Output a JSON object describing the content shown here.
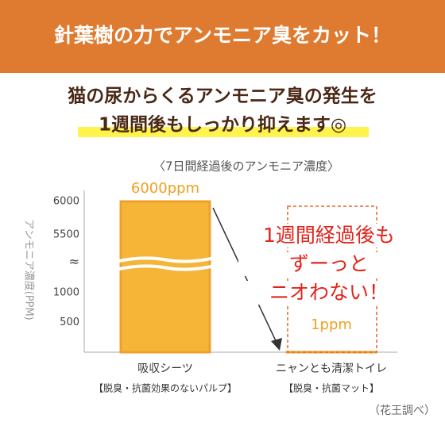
{
  "header": {
    "title": "針葉樹の力でアンモニア臭をカット！"
  },
  "subtitle": {
    "lines": [
      "猫の尿からくるアンモニア臭の発生を",
      "1週間後もしっかり抑えます◎"
    ]
  },
  "chart_data": {
    "type": "bar",
    "title": "〈7日間経過後のアンモニア濃度〉",
    "y_label": "アンモニア濃度(PPM)",
    "categories": [
      "吸収シーツ",
      "ニャンとも清潔トイレ"
    ],
    "category_notes": [
      "【脱臭・抗菌効果のないパルプ】",
      "【脱臭・抗菌マット】"
    ],
    "values": [
      6000,
      1
    ],
    "value_labels": [
      "6000ppm",
      "1ppm"
    ],
    "color": "#f6b536",
    "ylim": [
      0,
      6000
    ],
    "yticks": [
      500,
      1000,
      5500,
      6000
    ],
    "axis_break": "≈",
    "annotation_lines": [
      "1週間経過後も",
      "ずーっと",
      "ニオわない！"
    ]
  },
  "source": "（花王調べ）"
}
